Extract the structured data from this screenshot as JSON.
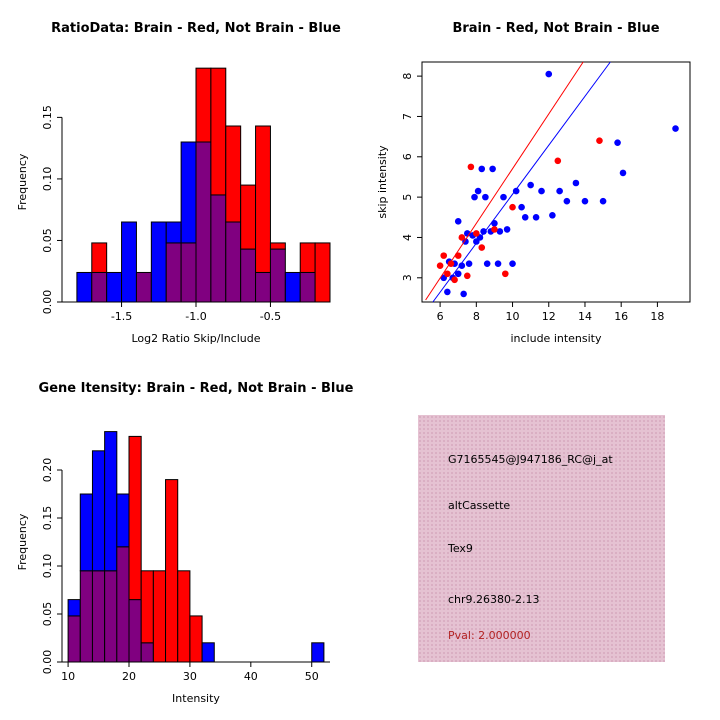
{
  "figure": {
    "background": "#ffffff"
  },
  "colors": {
    "brain_red": "#ff0000",
    "not_brain_blue": "#0000ff",
    "overlap_purple": "#800080",
    "axis": "#000000"
  },
  "chart_data": [
    {
      "type": "bar",
      "subtype": "overlaid-histogram",
      "title": "RatioData: Brain - Red, Not Brain - Blue",
      "xlabel": "Log2 Ratio Skip/Include",
      "ylabel": "Frequency",
      "xlim": [
        -1.9,
        -0.1
      ],
      "ylim": [
        0,
        0.195
      ],
      "xticks": [
        -1.5,
        -1.0,
        -0.5
      ],
      "xtick_labels": [
        "-1.5",
        "-1.0",
        "-0.5"
      ],
      "yticks": [
        0,
        0.05,
        0.1,
        0.15
      ],
      "ytick_labels": [
        "0.00",
        "0.05",
        "0.10",
        "0.15"
      ],
      "bin_width": 0.1,
      "bin_starts": [
        -1.8,
        -1.7,
        -1.6,
        -1.5,
        -1.4,
        -1.3,
        -1.2,
        -1.1,
        -1.0,
        -0.9,
        -0.8,
        -0.7,
        -0.6,
        -0.5,
        -0.4,
        -0.3,
        -0.2
      ],
      "overlap_color": "#800080",
      "legend": "none",
      "grid": false,
      "series": [
        {
          "name": "Not Brain",
          "color": "#0000ff",
          "values": [
            0.024,
            0.024,
            0.024,
            0.065,
            0.024,
            0.065,
            0.065,
            0.13,
            0.13,
            0.087,
            0.065,
            0.043,
            0.024,
            0.043,
            0.024,
            0.024,
            0
          ]
        },
        {
          "name": "Brain",
          "color": "#ff0000",
          "values": [
            0,
            0.048,
            0,
            0,
            0.024,
            0,
            0.048,
            0.048,
            0.19,
            0.19,
            0.143,
            0.095,
            0.143,
            0.048,
            0,
            0.048,
            0.048
          ]
        }
      ]
    },
    {
      "type": "scatter",
      "title": "Brain - Red, Not Brain - Blue",
      "xlabel": "include intensity",
      "ylabel": "skip intensity",
      "xlim": [
        5.0,
        19.8
      ],
      "ylim": [
        2.4,
        8.35
      ],
      "xticks": [
        6,
        8,
        10,
        12,
        14,
        16,
        18
      ],
      "xtick_labels": [
        "6",
        "8",
        "10",
        "12",
        "14",
        "16",
        "18"
      ],
      "yticks": [
        3,
        4,
        5,
        6,
        7,
        8
      ],
      "ytick_labels": [
        "3",
        "4",
        "5",
        "6",
        "7",
        "8"
      ],
      "legend": "none",
      "grid": false,
      "series": [
        {
          "name": "Not Brain",
          "color": "#0000ff",
          "points": [
            [
              6.2,
              3.0
            ],
            [
              6.4,
              2.65
            ],
            [
              6.5,
              3.4
            ],
            [
              6.7,
              3.0
            ],
            [
              6.8,
              3.35
            ],
            [
              7.0,
              3.1
            ],
            [
              7.0,
              4.4
            ],
            [
              7.2,
              3.3
            ],
            [
              7.3,
              2.6
            ],
            [
              7.4,
              3.9
            ],
            [
              7.5,
              4.1
            ],
            [
              7.6,
              3.35
            ],
            [
              7.8,
              4.05
            ],
            [
              7.9,
              5.0
            ],
            [
              8.0,
              3.9
            ],
            [
              8.1,
              5.15
            ],
            [
              8.2,
              4.0
            ],
            [
              8.3,
              5.7
            ],
            [
              8.4,
              4.15
            ],
            [
              8.5,
              5.0
            ],
            [
              8.6,
              3.35
            ],
            [
              8.8,
              4.15
            ],
            [
              8.9,
              5.7
            ],
            [
              9.0,
              4.35
            ],
            [
              9.2,
              3.35
            ],
            [
              9.3,
              4.15
            ],
            [
              9.5,
              5.0
            ],
            [
              9.7,
              4.2
            ],
            [
              10.0,
              3.35
            ],
            [
              10.2,
              5.15
            ],
            [
              10.5,
              4.75
            ],
            [
              10.7,
              4.5
            ],
            [
              11.0,
              5.3
            ],
            [
              11.3,
              4.5
            ],
            [
              11.6,
              5.15
            ],
            [
              12.0,
              8.05
            ],
            [
              12.2,
              4.55
            ],
            [
              12.6,
              5.15
            ],
            [
              13.0,
              4.9
            ],
            [
              13.5,
              5.35
            ],
            [
              14.0,
              4.9
            ],
            [
              15.0,
              4.9
            ],
            [
              15.8,
              6.35
            ],
            [
              16.1,
              5.6
            ],
            [
              19.0,
              6.7
            ]
          ]
        },
        {
          "name": "Brain",
          "color": "#ff0000",
          "points": [
            [
              6.0,
              3.3
            ],
            [
              6.2,
              3.55
            ],
            [
              6.4,
              3.1
            ],
            [
              6.6,
              3.35
            ],
            [
              6.8,
              2.95
            ],
            [
              7.0,
              3.55
            ],
            [
              7.2,
              4.0
            ],
            [
              7.5,
              3.05
            ],
            [
              7.7,
              5.75
            ],
            [
              8.0,
              4.1
            ],
            [
              8.3,
              3.75
            ],
            [
              9.0,
              4.2
            ],
            [
              9.6,
              3.1
            ],
            [
              10.0,
              4.75
            ],
            [
              12.5,
              5.9
            ],
            [
              14.8,
              6.4
            ]
          ]
        }
      ],
      "fit_lines": [
        {
          "name": "Brain fit",
          "color": "#ff0000",
          "x1": 5.2,
          "y1": 2.45,
          "x2": 13.9,
          "y2": 8.35
        },
        {
          "name": "Not Brain fit",
          "color": "#0000ff",
          "x1": 5.6,
          "y1": 2.4,
          "x2": 15.4,
          "y2": 8.35
        }
      ]
    },
    {
      "type": "bar",
      "subtype": "overlaid-histogram",
      "title": "Gene Itensity: Brain - Red, Not Brain - Blue",
      "xlabel": "Intensity",
      "ylabel": "Frequency",
      "xlim": [
        9,
        53
      ],
      "ylim": [
        0,
        0.25
      ],
      "xticks": [
        10,
        20,
        30,
        40,
        50
      ],
      "xtick_labels": [
        "10",
        "20",
        "30",
        "40",
        "50"
      ],
      "yticks": [
        0,
        0.05,
        0.1,
        0.15,
        0.2
      ],
      "ytick_labels": [
        "0.00",
        "0.05",
        "0.10",
        "0.15",
        "0.20"
      ],
      "bin_width": 2,
      "bin_starts": [
        10,
        12,
        14,
        16,
        18,
        20,
        22,
        24,
        26,
        28,
        30,
        32,
        34,
        36,
        38,
        40,
        42,
        44,
        46,
        48,
        50
      ],
      "overlap_color": "#800080",
      "legend": "none",
      "grid": false,
      "series": [
        {
          "name": "Not Brain",
          "color": "#0000ff",
          "values": [
            0.065,
            0.175,
            0.22,
            0.24,
            0.175,
            0.065,
            0.02,
            0,
            0,
            0,
            0,
            0.02,
            0,
            0,
            0,
            0,
            0,
            0,
            0,
            0,
            0.02
          ]
        },
        {
          "name": "Brain",
          "color": "#ff0000",
          "values": [
            0.048,
            0.095,
            0.095,
            0.095,
            0.12,
            0.235,
            0.095,
            0.095,
            0.19,
            0.095,
            0.048,
            0,
            0,
            0,
            0,
            0,
            0,
            0,
            0,
            0,
            0
          ]
        }
      ]
    }
  ],
  "info_box": {
    "background": "#e5c2d2",
    "lines": [
      {
        "text": "G7165545@J947186_RC@j_at",
        "color": "#000000"
      },
      {
        "text": "altCassette",
        "color": "#000000"
      },
      {
        "text": "Tex9",
        "color": "#000000"
      },
      {
        "text": "chr9.26380-2.13",
        "color": "#000000"
      },
      {
        "text": "Pval: 2.000000",
        "color": "#b22222"
      }
    ]
  }
}
